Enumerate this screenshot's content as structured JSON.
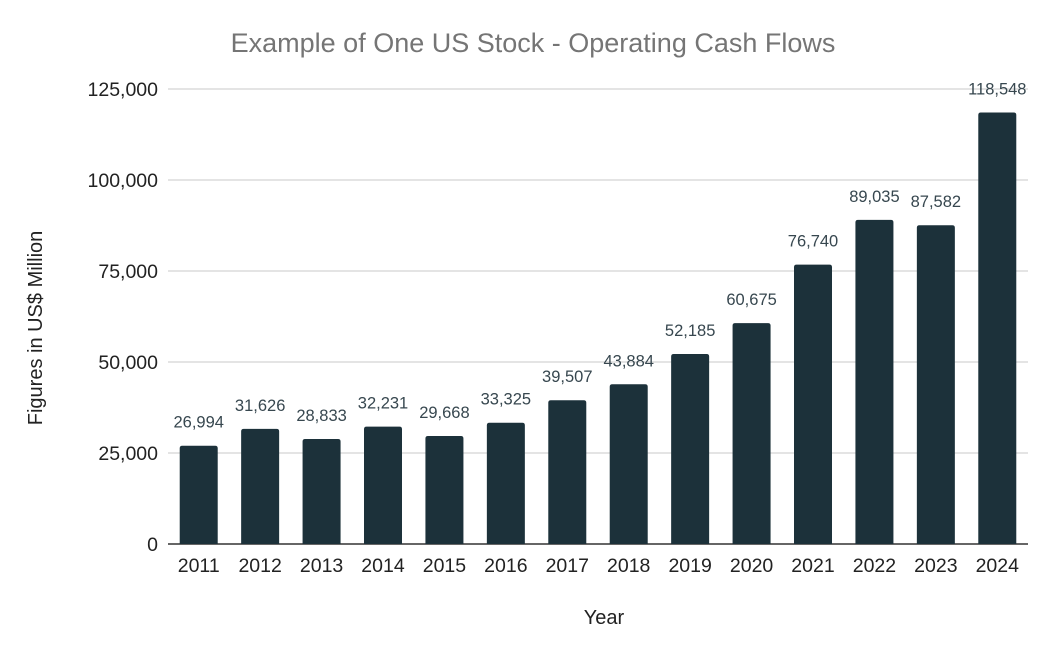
{
  "chart_data": {
    "type": "bar",
    "title": "Example of One US Stock - Operating Cash Flows",
    "xlabel": "Year",
    "ylabel": "Figures in US$ Million",
    "categories": [
      "2011",
      "2012",
      "2013",
      "2014",
      "2015",
      "2016",
      "2017",
      "2018",
      "2019",
      "2020",
      "2021",
      "2022",
      "2023",
      "2024"
    ],
    "values": [
      26994,
      31626,
      28833,
      32231,
      29668,
      33325,
      39507,
      43884,
      52185,
      60675,
      76740,
      89035,
      87582,
      118548
    ],
    "data_labels": [
      "26,994",
      "31,626",
      "28,833",
      "32,231",
      "29,668",
      "33,325",
      "39,507",
      "43,884",
      "52,185",
      "60,675",
      "76,740",
      "89,035",
      "87,582",
      "118,548"
    ],
    "ylim": [
      0,
      125000
    ],
    "yticks": [
      0,
      25000,
      50000,
      75000,
      100000,
      125000
    ],
    "ytick_labels": [
      "0",
      "25,000",
      "50,000",
      "75,000",
      "100,000",
      "125,000"
    ],
    "grid": true,
    "legend": "none",
    "bar_color": "#1c313a"
  }
}
